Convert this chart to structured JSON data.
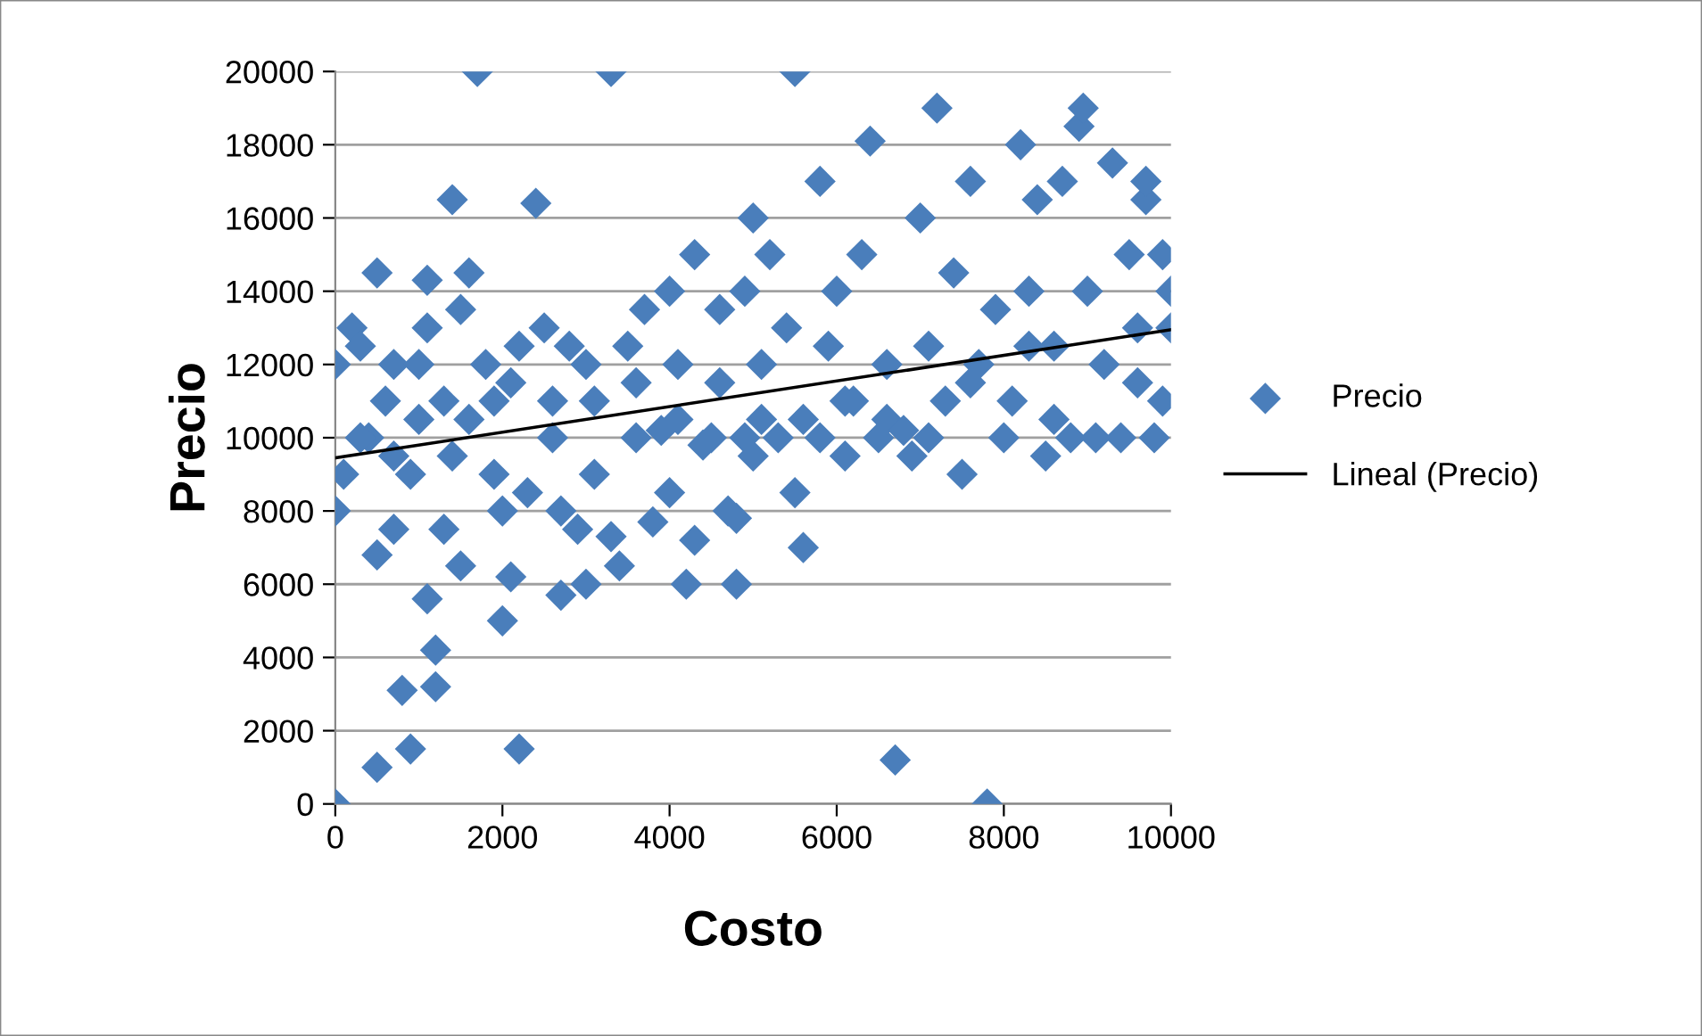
{
  "chart_data": {
    "type": "scatter",
    "xlabel": "Costo",
    "ylabel": "Precio",
    "xlim": [
      0,
      10000
    ],
    "ylim": [
      0,
      20000
    ],
    "xticks": [
      0,
      2000,
      4000,
      6000,
      8000,
      10000
    ],
    "yticks": [
      0,
      2000,
      4000,
      6000,
      8000,
      10000,
      12000,
      14000,
      16000,
      18000,
      20000
    ],
    "grid": "y",
    "legend": "right",
    "marker": "diamond",
    "series": [
      {
        "name": "Precio",
        "color": "#4a7ebb",
        "x": [
          0,
          0,
          0,
          100,
          200,
          300,
          400,
          500,
          500,
          500,
          700,
          700,
          800,
          900,
          900,
          1000,
          1100,
          1100,
          1100,
          1200,
          1200,
          1300,
          1300,
          1400,
          1400,
          1500,
          1500,
          1600,
          1700,
          1800,
          1900,
          2000,
          2000,
          2100,
          2200,
          2200,
          2300,
          2400,
          2500,
          2600,
          2700,
          2700,
          2900,
          3000,
          3000,
          3100,
          3300,
          3300,
          3400,
          3500,
          3600,
          3700,
          3800,
          4000,
          4000,
          4100,
          4200,
          4300,
          4300,
          4500,
          4600,
          4700,
          4800,
          4800,
          4900,
          4900,
          5000,
          5000,
          5100,
          5200,
          5400,
          5500,
          5500,
          5600,
          5800,
          5800,
          5900,
          6000,
          6100,
          6200,
          6300,
          6400,
          6500,
          6600,
          6700,
          6900,
          7000,
          7100,
          7200,
          7300,
          7400,
          7500,
          7600,
          7700,
          7800,
          7900,
          8000,
          8200,
          8300,
          8400,
          8500,
          8600,
          8700,
          8800,
          8900,
          8950,
          9000,
          9200,
          9300,
          9400,
          9500,
          9600,
          9700,
          9700,
          9800,
          9900,
          10000,
          9900,
          10000,
          300,
          600,
          1000,
          1600,
          2100,
          2600,
          3100,
          3600,
          4100,
          4600,
          5100,
          5600,
          6100,
          6600,
          7100,
          7600,
          8100,
          8600,
          9100,
          9600,
          3900,
          4400,
          5300,
          6800,
          8300,
          2800,
          1900,
          700
        ],
        "values": [
          0,
          12000,
          8000,
          9000,
          13000,
          12500,
          10000,
          14500,
          6800,
          1000,
          7500,
          12000,
          3100,
          1500,
          9000,
          10500,
          14300,
          13000,
          5600,
          4200,
          3200,
          7500,
          11000,
          16500,
          9500,
          13500,
          6500,
          14500,
          20000,
          12000,
          9000,
          5000,
          8000,
          6200,
          12500,
          1500,
          8500,
          16400,
          13000,
          11000,
          8000,
          5700,
          7500,
          6000,
          12000,
          9000,
          20000,
          7300,
          6500,
          12500,
          10000,
          13500,
          7700,
          14000,
          8500,
          12000,
          6000,
          7200,
          15000,
          10000,
          13500,
          8000,
          6000,
          7800,
          14000,
          10000,
          16000,
          9500,
          12000,
          15000,
          13000,
          20000,
          8500,
          7000,
          17000,
          10000,
          12500,
          14000,
          9500,
          11000,
          15000,
          18100,
          10000,
          12000,
          1200,
          9500,
          16000,
          12500,
          19000,
          11000,
          14500,
          9000,
          17000,
          12000,
          0,
          13500,
          10000,
          18000,
          14000,
          16500,
          9500,
          12500,
          17000,
          10000,
          18500,
          19000,
          14000,
          12000,
          17500,
          10000,
          15000,
          13000,
          16500,
          17000,
          10000,
          15000,
          13000,
          11000,
          14000,
          10000,
          11000,
          12000,
          10500,
          11500,
          10000,
          11000,
          11500,
          10500,
          11500,
          10500,
          10500,
          11000,
          10500,
          10000,
          11500,
          11000,
          10500,
          10000,
          11500,
          10200,
          9800,
          10000,
          10200,
          12500,
          12500,
          11000,
          9500
        ]
      },
      {
        "name": "Lineal (Precio)",
        "color": "#000000",
        "type": "line",
        "marker": "none",
        "x": [
          0,
          10000
        ],
        "values": [
          9450,
          12950
        ]
      }
    ]
  }
}
